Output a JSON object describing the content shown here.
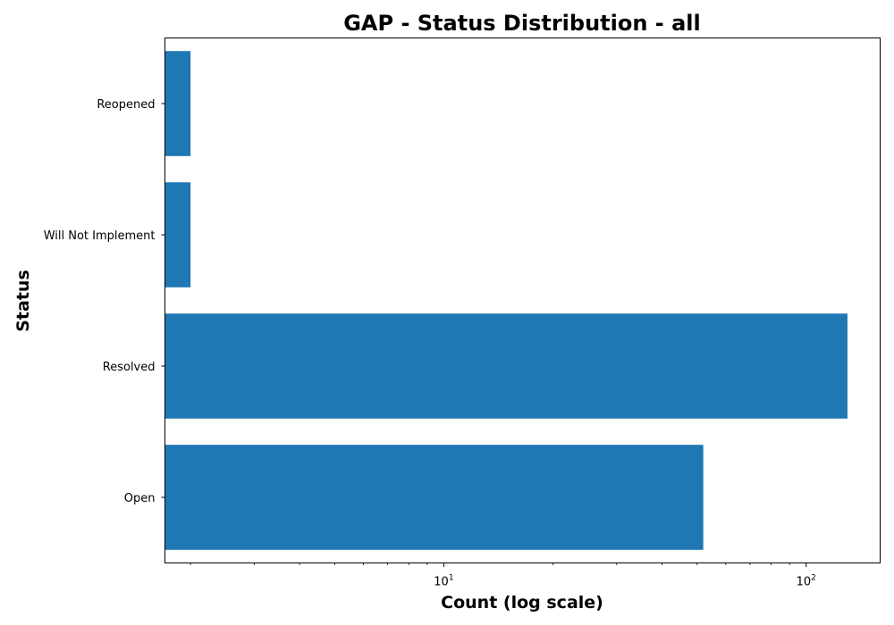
{
  "chart_data": {
    "type": "bar",
    "orientation": "horizontal",
    "title": "GAP - Status Distribution - all",
    "xlabel": "Count (log scale)",
    "ylabel": "Status",
    "x_scale": "log",
    "xlim": [
      1.7,
      160
    ],
    "categories": [
      "Open",
      "Resolved",
      "Will Not Implement",
      "Reopened"
    ],
    "values": [
      52,
      130,
      2,
      2
    ],
    "x_ticks": [
      {
        "value": 10,
        "base": "10",
        "exponent": "1"
      },
      {
        "value": 100,
        "base": "10",
        "exponent": "2"
      }
    ],
    "grid": false,
    "legend": "none",
    "bar_color": "#1f77b4"
  }
}
